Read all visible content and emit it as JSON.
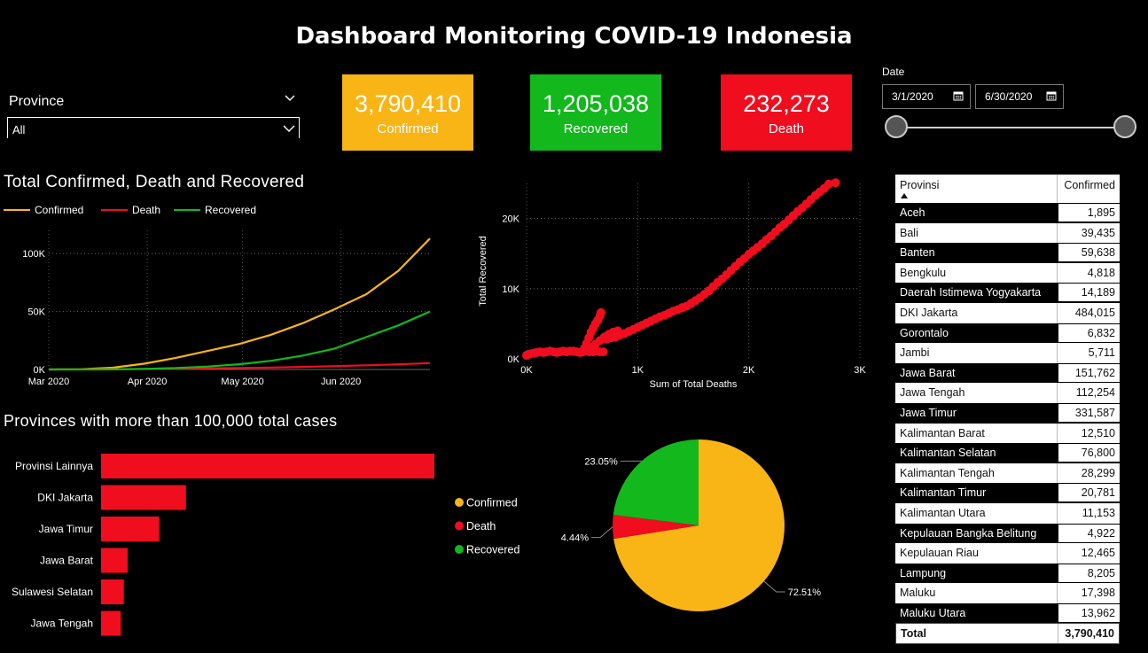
{
  "header": {
    "title": "Dashboard Monitoring COVID-19 Indonesia"
  },
  "province_slicer": {
    "label": "Province",
    "value": "All"
  },
  "cards": [
    {
      "value": "3,790,410",
      "label": "Confirmed",
      "color": "#F9B515"
    },
    {
      "value": "1,205,038",
      "label": "Recovered",
      "color": "#12B81C"
    },
    {
      "value": "232,273",
      "label": "Death",
      "color": "#F00D1E"
    }
  ],
  "date_slicer": {
    "label": "Date",
    "start": "3/1/2020",
    "end": "6/30/2020"
  },
  "line_section": {
    "title": "Total Confirmed, Death and Recovered"
  },
  "bar_section": {
    "title": "Provinces with more than 100,000 total cases"
  },
  "colors": {
    "confirmed": "#F9B515",
    "death": "#F00D1E",
    "recovered": "#12B81C"
  },
  "chart_data": [
    {
      "type": "line",
      "title": "Total Confirmed, Death and Recovered",
      "x_ticks": [
        "Mar 2020",
        "Apr 2020",
        "May 2020",
        "Jun 2020"
      ],
      "y_ticks": [
        "0K",
        "50K",
        "100K"
      ],
      "ylim": [
        0,
        120000
      ],
      "grid": true,
      "legend": "top-left",
      "x": [
        0,
        10,
        20,
        30,
        40,
        50,
        60,
        70,
        80,
        90,
        100,
        110,
        120
      ],
      "series": [
        {
          "name": "Confirmed",
          "color": "#F9B515",
          "values": [
            0,
            200,
            1500,
            5000,
            10000,
            16000,
            22000,
            30000,
            40000,
            52000,
            65000,
            85000,
            113000
          ]
        },
        {
          "name": "Death",
          "color": "#F00D1E",
          "values": [
            0,
            50,
            200,
            400,
            700,
            1000,
            1300,
            1700,
            2200,
            2900,
            3600,
            4400,
            5500
          ]
        },
        {
          "name": "Recovered",
          "color": "#12B81C",
          "values": [
            0,
            10,
            100,
            500,
            1200,
            2500,
            4500,
            7500,
            12000,
            18000,
            28000,
            38000,
            50000
          ]
        }
      ]
    },
    {
      "type": "scatter",
      "xlabel": "Sum of Total Deaths",
      "ylabel": "Total Recovered",
      "x_ticks": [
        "0K",
        "1K",
        "2K",
        "3K"
      ],
      "y_ticks": [
        "0K",
        "10K",
        "20K"
      ],
      "xlim": [
        0,
        3000
      ],
      "ylim": [
        0,
        25000
      ],
      "grid": true,
      "color": "#F00D1E",
      "points": [
        [
          0,
          500
        ],
        [
          30,
          700
        ],
        [
          60,
          800
        ],
        [
          90,
          900
        ],
        [
          120,
          1000
        ],
        [
          150,
          900
        ],
        [
          180,
          1000
        ],
        [
          210,
          1100
        ],
        [
          240,
          1000
        ],
        [
          270,
          900
        ],
        [
          300,
          1000
        ],
        [
          330,
          1100
        ],
        [
          360,
          1000
        ],
        [
          390,
          1100
        ],
        [
          420,
          1100
        ],
        [
          450,
          1000
        ],
        [
          480,
          900
        ],
        [
          510,
          1000
        ],
        [
          540,
          1100
        ],
        [
          570,
          1000
        ],
        [
          600,
          1000
        ],
        [
          630,
          1100
        ],
        [
          660,
          1000
        ],
        [
          690,
          1000
        ],
        [
          520,
          1500
        ],
        [
          540,
          2200
        ],
        [
          560,
          3000
        ],
        [
          580,
          3800
        ],
        [
          600,
          4400
        ],
        [
          620,
          5000
        ],
        [
          640,
          5500
        ],
        [
          660,
          6100
        ],
        [
          670,
          6600
        ],
        [
          580,
          1600
        ],
        [
          620,
          2100
        ],
        [
          660,
          2600
        ],
        [
          700,
          3100
        ],
        [
          740,
          3500
        ],
        [
          780,
          3800
        ],
        [
          820,
          4000
        ],
        [
          720,
          2800
        ],
        [
          760,
          3000
        ],
        [
          800,
          3100
        ],
        [
          840,
          3400
        ],
        [
          880,
          3600
        ],
        [
          920,
          3900
        ],
        [
          960,
          4200
        ],
        [
          1000,
          4500
        ],
        [
          1040,
          4800
        ],
        [
          1080,
          5100
        ],
        [
          1120,
          5400
        ],
        [
          1160,
          5700
        ],
        [
          1200,
          6000
        ],
        [
          1240,
          6200
        ],
        [
          1280,
          6500
        ],
        [
          1320,
          6800
        ],
        [
          1360,
          7000
        ],
        [
          1400,
          7300
        ],
        [
          1440,
          7500
        ],
        [
          1480,
          7900
        ],
        [
          1520,
          8300
        ],
        [
          1560,
          8700
        ],
        [
          1600,
          9200
        ],
        [
          1640,
          9700
        ],
        [
          1680,
          10300
        ],
        [
          1720,
          10900
        ],
        [
          1760,
          11400
        ],
        [
          1800,
          12000
        ],
        [
          1840,
          12600
        ],
        [
          1880,
          13200
        ],
        [
          1920,
          13800
        ],
        [
          1960,
          14300
        ],
        [
          2000,
          14900
        ],
        [
          2040,
          15400
        ],
        [
          2080,
          15900
        ],
        [
          2120,
          16400
        ],
        [
          2160,
          17000
        ],
        [
          2200,
          17500
        ],
        [
          2240,
          18100
        ],
        [
          2280,
          18700
        ],
        [
          2320,
          19200
        ],
        [
          2360,
          19800
        ],
        [
          2400,
          20400
        ],
        [
          2440,
          21000
        ],
        [
          2480,
          21500
        ],
        [
          2520,
          22100
        ],
        [
          2560,
          22700
        ],
        [
          2600,
          23300
        ],
        [
          2640,
          23800
        ],
        [
          2680,
          24300
        ],
        [
          2720,
          24900
        ],
        [
          2780,
          25100
        ]
      ]
    },
    {
      "type": "bar",
      "title": "Provinces with more than 100,000 total cases",
      "categories": [
        "Provinsi Lainnya",
        "DKI Jakarta",
        "Jawa Timur",
        "Jawa Barat",
        "Sulawesi Selatan",
        "Jawa Tengah"
      ],
      "values": [
        1900000,
        484015,
        331587,
        151762,
        130000,
        112254
      ],
      "color": "#F00D1E"
    },
    {
      "type": "pie",
      "categories": [
        "Confirmed",
        "Death",
        "Recovered"
      ],
      "values": [
        72.51,
        4.44,
        23.05
      ],
      "labels": [
        "72.51%",
        "4.44%",
        "23.05%"
      ],
      "colors": [
        "#F9B515",
        "#F00D1E",
        "#12B81C"
      ],
      "legend": "left"
    },
    {
      "type": "table",
      "columns": [
        "Provinsi",
        "Confirmed"
      ],
      "rows": [
        [
          "Aceh",
          "1,895"
        ],
        [
          "Bali",
          "39,435"
        ],
        [
          "Banten",
          "59,638"
        ],
        [
          "Bengkulu",
          "4,818"
        ],
        [
          "Daerah Istimewa Yogyakarta",
          "14,189"
        ],
        [
          "DKI Jakarta",
          "484,015"
        ],
        [
          "Gorontalo",
          "6,832"
        ],
        [
          "Jambi",
          "5,711"
        ],
        [
          "Jawa Barat",
          "151,762"
        ],
        [
          "Jawa Tengah",
          "112,254"
        ],
        [
          "Jawa Timur",
          "331,587"
        ],
        [
          "Kalimantan Barat",
          "12,510"
        ],
        [
          "Kalimantan Selatan",
          "76,800"
        ],
        [
          "Kalimantan Tengah",
          "28,299"
        ],
        [
          "Kalimantan Timur",
          "20,781"
        ],
        [
          "Kalimantan Utara",
          "11,153"
        ],
        [
          "Kepulauan Bangka Belitung",
          "4,922"
        ],
        [
          "Kepulauan Riau",
          "12,465"
        ],
        [
          "Lampung",
          "8,205"
        ],
        [
          "Maluku",
          "17,398"
        ],
        [
          "Maluku Utara",
          "13,962"
        ]
      ],
      "total": [
        "Total",
        "3,790,410"
      ]
    }
  ]
}
